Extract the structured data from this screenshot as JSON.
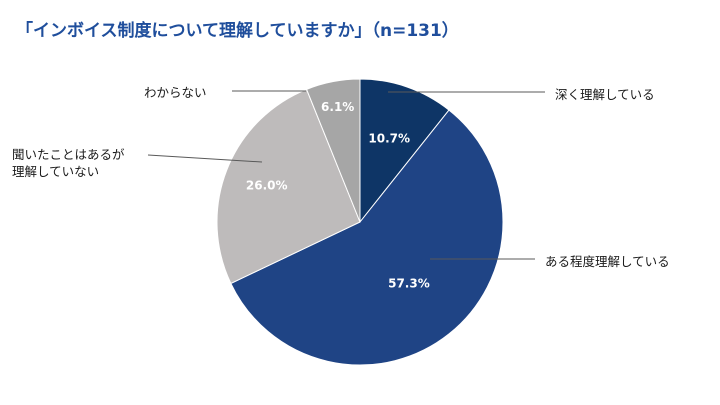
{
  "chart_data": {
    "type": "pie",
    "title": "「インボイス制度について理解していますか」（n=131）",
    "start_angle_deg": 0,
    "direction": "clockwise",
    "slices": [
      {
        "label_lines": [
          "深く理解している"
        ],
        "value": 10.7,
        "value_label": "10.7%",
        "color": "#0e3566"
      },
      {
        "label_lines": [
          "ある程度理解している"
        ],
        "value": 57.3,
        "value_label": "57.3%",
        "color": "#1f4485"
      },
      {
        "label_lines": [
          "聞いたことはあるが",
          "理解していない"
        ],
        "value": 26.0,
        "value_label": "26.0%",
        "color": "#bebbbb"
      },
      {
        "label_lines": [
          "わからない"
        ],
        "value": 6.1,
        "value_label": "6.1%",
        "color": "#a6a6a6"
      }
    ],
    "legend": "none"
  }
}
